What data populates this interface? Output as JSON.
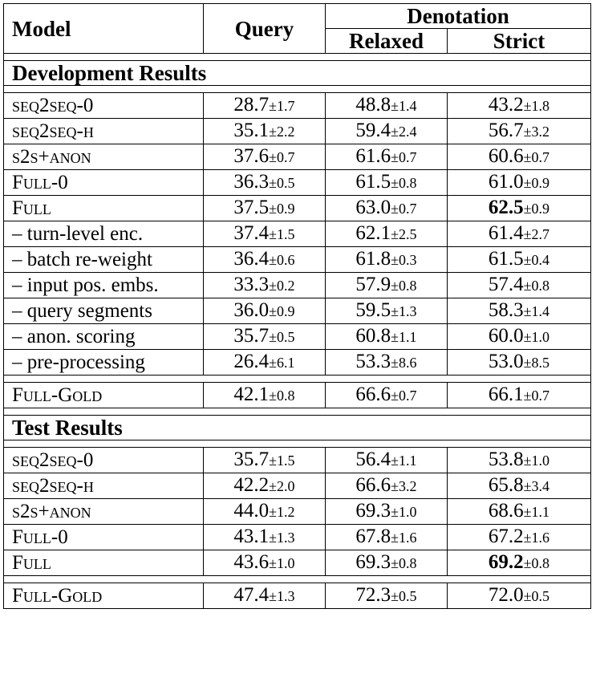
{
  "header": {
    "model": "Model",
    "query": "Query",
    "denotation": "Denotation",
    "relaxed": "Relaxed",
    "strict": "Strict"
  },
  "sections": [
    {
      "title": "Development Results",
      "rows": [
        {
          "model": "seq2seq-0",
          "smallcaps": true,
          "query": "28.7",
          "query_sd": "±1.7",
          "relaxed": "48.8",
          "relaxed_sd": "±1.4",
          "strict": "43.2",
          "strict_sd": "±1.8"
        },
        {
          "model": "seq2seq-h",
          "smallcaps": true,
          "query": "35.1",
          "query_sd": "±2.2",
          "relaxed": "59.4",
          "relaxed_sd": "±2.4",
          "strict": "56.7",
          "strict_sd": "±3.2"
        },
        {
          "model": "s2s+anon",
          "smallcaps": true,
          "query": "37.6",
          "query_sd": "±0.7",
          "relaxed": "61.6",
          "relaxed_sd": "±0.7",
          "strict": "60.6",
          "strict_sd": "±0.7"
        },
        {
          "model": "Full-0",
          "smallcaps": true,
          "query": "36.3",
          "query_sd": "±0.5",
          "relaxed": "61.5",
          "relaxed_sd": "±0.8",
          "strict": "61.0",
          "strict_sd": "±0.9"
        },
        {
          "model": "Full",
          "smallcaps": true,
          "query": "37.5",
          "query_sd": "±0.9",
          "relaxed": "63.0",
          "relaxed_sd": "±0.7",
          "strict": "62.5",
          "strict_sd": "±0.9",
          "strict_best": true
        },
        {
          "model": "– turn-level enc.",
          "smallcaps": false,
          "query": "37.4",
          "query_sd": "±1.5",
          "relaxed": "62.1",
          "relaxed_sd": "±2.5",
          "strict": "61.4",
          "strict_sd": "±2.7"
        },
        {
          "model": "– batch re-weight",
          "smallcaps": false,
          "query": "36.4",
          "query_sd": "±0.6",
          "relaxed": "61.8",
          "relaxed_sd": "±0.3",
          "strict": "61.5",
          "strict_sd": "±0.4"
        },
        {
          "model": "– input pos. embs.",
          "smallcaps": false,
          "query": "33.3",
          "query_sd": "±0.2",
          "relaxed": "57.9",
          "relaxed_sd": "±0.8",
          "strict": "57.4",
          "strict_sd": "±0.8"
        },
        {
          "model": "– query segments",
          "smallcaps": false,
          "query": "36.0",
          "query_sd": "±0.9",
          "relaxed": "59.5",
          "relaxed_sd": "±1.3",
          "strict": "58.3",
          "strict_sd": "±1.4"
        },
        {
          "model": "– anon. scoring",
          "smallcaps": false,
          "query": "35.7",
          "query_sd": "±0.5",
          "relaxed": "60.8",
          "relaxed_sd": "±1.1",
          "strict": "60.0",
          "strict_sd": "±1.0"
        },
        {
          "model": "– pre-processing",
          "smallcaps": false,
          "query": "26.4",
          "query_sd": "±6.1",
          "relaxed": "53.3",
          "relaxed_sd": "±8.6",
          "strict": "53.0",
          "strict_sd": "±8.5"
        }
      ],
      "gold": {
        "model": "Full-Gold",
        "smallcaps": true,
        "query": "42.1",
        "query_sd": "±0.8",
        "relaxed": "66.6",
        "relaxed_sd": "±0.7",
        "strict": "66.1",
        "strict_sd": "±0.7"
      }
    },
    {
      "title": "Test Results",
      "rows": [
        {
          "model": "seq2seq-0",
          "smallcaps": true,
          "query": "35.7",
          "query_sd": "±1.5",
          "relaxed": "56.4",
          "relaxed_sd": "±1.1",
          "strict": "53.8",
          "strict_sd": "±1.0"
        },
        {
          "model": "seq2seq-h",
          "smallcaps": true,
          "query": "42.2",
          "query_sd": "±2.0",
          "relaxed": "66.6",
          "relaxed_sd": "±3.2",
          "strict": "65.8",
          "strict_sd": "±3.4"
        },
        {
          "model": "s2s+anon",
          "smallcaps": true,
          "query": "44.0",
          "query_sd": "±1.2",
          "relaxed": "69.3",
          "relaxed_sd": "±1.0",
          "strict": "68.6",
          "strict_sd": "±1.1"
        },
        {
          "model": "Full-0",
          "smallcaps": true,
          "query": "43.1",
          "query_sd": "±1.3",
          "relaxed": "67.8",
          "relaxed_sd": "±1.6",
          "strict": "67.2",
          "strict_sd": "±1.6"
        },
        {
          "model": "Full",
          "smallcaps": true,
          "query": "43.6",
          "query_sd": "±1.0",
          "relaxed": "69.3",
          "relaxed_sd": "±0.8",
          "strict": "69.2",
          "strict_sd": "±0.8",
          "strict_best": true
        }
      ],
      "gold": {
        "model": "Full-Gold",
        "smallcaps": true,
        "query": "47.4",
        "query_sd": "±1.3",
        "relaxed": "72.3",
        "relaxed_sd": "±0.5",
        "strict": "72.0",
        "strict_sd": "±0.5"
      }
    }
  ]
}
